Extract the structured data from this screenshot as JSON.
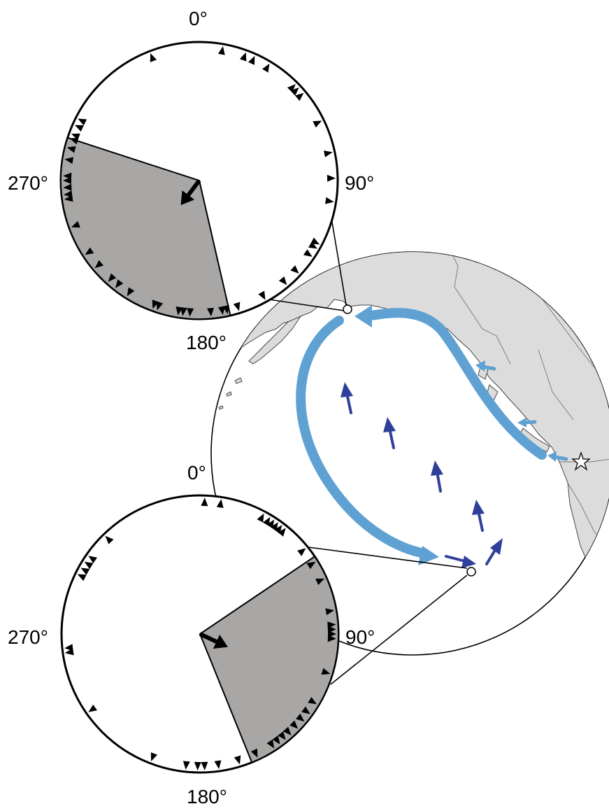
{
  "top_rose": {
    "labels": {
      "north": "0°",
      "east": "90°",
      "south": "180°",
      "west": "270°"
    },
    "sector_deg": [
      167,
      288
    ],
    "mean_direction_deg": 217,
    "marker_angles": [
      10,
      20,
      24,
      31,
      45,
      47,
      50,
      64,
      78,
      89,
      99,
      118,
      120,
      124,
      133,
      140,
      151,
      163,
      168,
      170,
      175,
      184,
      187,
      189,
      198,
      200,
      212,
      218,
      222,
      230,
      237,
      250,
      262,
      264,
      267,
      270,
      272,
      279,
      284,
      288,
      290,
      294,
      297,
      339
    ]
  },
  "bottom_rose": {
    "labels": {
      "north": "0°",
      "east": "90°",
      "south": "180°",
      "west": "270°"
    },
    "sector_deg": [
      56,
      158
    ],
    "mean_direction_deg": 115,
    "marker_angles": [
      2,
      9,
      28,
      31,
      33,
      35,
      37,
      39,
      51,
      58,
      66,
      80,
      86,
      88,
      90,
      92,
      107,
      121,
      126,
      130,
      134,
      138,
      141,
      144,
      147,
      155,
      163,
      172,
      178,
      181,
      186,
      201,
      235,
      262,
      262,
      264,
      296,
      299,
      302,
      305,
      316
    ]
  },
  "map": {
    "station_markers": [
      "north-station",
      "south-station"
    ],
    "source_marker": "star-icon",
    "colors": {
      "land": "#dcdcdc",
      "ocean": "#ffffff",
      "surface_wave_path": "#5fa1d2",
      "particle_motion": "#30409a"
    }
  }
}
